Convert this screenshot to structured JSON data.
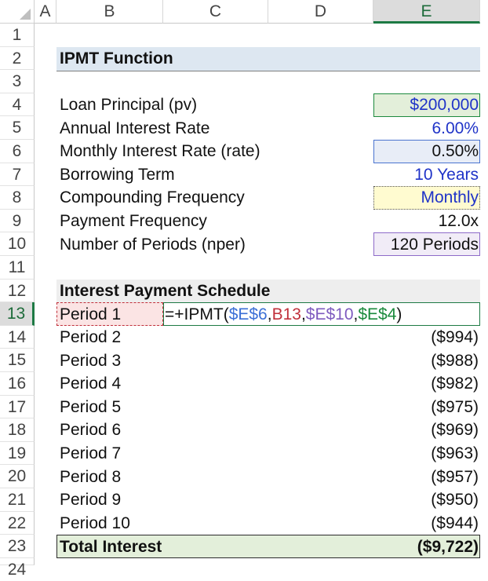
{
  "columns": [
    "A",
    "B",
    "C",
    "D",
    "E"
  ],
  "rows": [
    "1",
    "2",
    "3",
    "4",
    "5",
    "6",
    "7",
    "8",
    "9",
    "10",
    "11",
    "12",
    "13",
    "14",
    "15",
    "16",
    "17",
    "18",
    "19",
    "20",
    "21",
    "22",
    "23",
    "24"
  ],
  "title": "IPMT Function",
  "inputs": [
    {
      "label": "Loan Principal (pv)",
      "value": "$200,000"
    },
    {
      "label": "Annual Interest Rate",
      "value": "6.00%"
    },
    {
      "label": "Monthly Interest Rate (rate)",
      "value": "0.50%"
    },
    {
      "label": "Borrowing Term",
      "value": "10 Years"
    },
    {
      "label": "Compounding Frequency",
      "value": "Monthly"
    },
    {
      "label": "Payment Frequency",
      "value": "12.0x"
    },
    {
      "label": "Number of Periods (nper)",
      "value": "120 Periods"
    }
  ],
  "schedule_title": "Interest Payment Schedule",
  "active_cell": {
    "label": "Period 1",
    "formula": {
      "prefix": "=+IPMT(",
      "ref_rate": "$E$6",
      "sep1": ",",
      "ref_per": "B13",
      "sep2": ",",
      "ref_nper": "$E$10",
      "sep3": ",",
      "ref_pv": "$E$4",
      "suffix": ")"
    }
  },
  "schedule": [
    {
      "label": "Period 2",
      "value": "($994)"
    },
    {
      "label": "Period 3",
      "value": "($988)"
    },
    {
      "label": "Period 4",
      "value": "($982)"
    },
    {
      "label": "Period 5",
      "value": "($975)"
    },
    {
      "label": "Period 6",
      "value": "($969)"
    },
    {
      "label": "Period 7",
      "value": "($963)"
    },
    {
      "label": "Period 8",
      "value": "($957)"
    },
    {
      "label": "Period 9",
      "value": "($950)"
    },
    {
      "label": "Period 10",
      "value": "($944)"
    }
  ],
  "total": {
    "label": "Total Interest",
    "value": "($9,722)"
  },
  "colors": {
    "title_band": "#dde7f1",
    "schedule_band": "#eeeeee",
    "total_band": "#e3efda",
    "input_blue": "#1f33c8",
    "selection_green": "#1d7a44"
  }
}
